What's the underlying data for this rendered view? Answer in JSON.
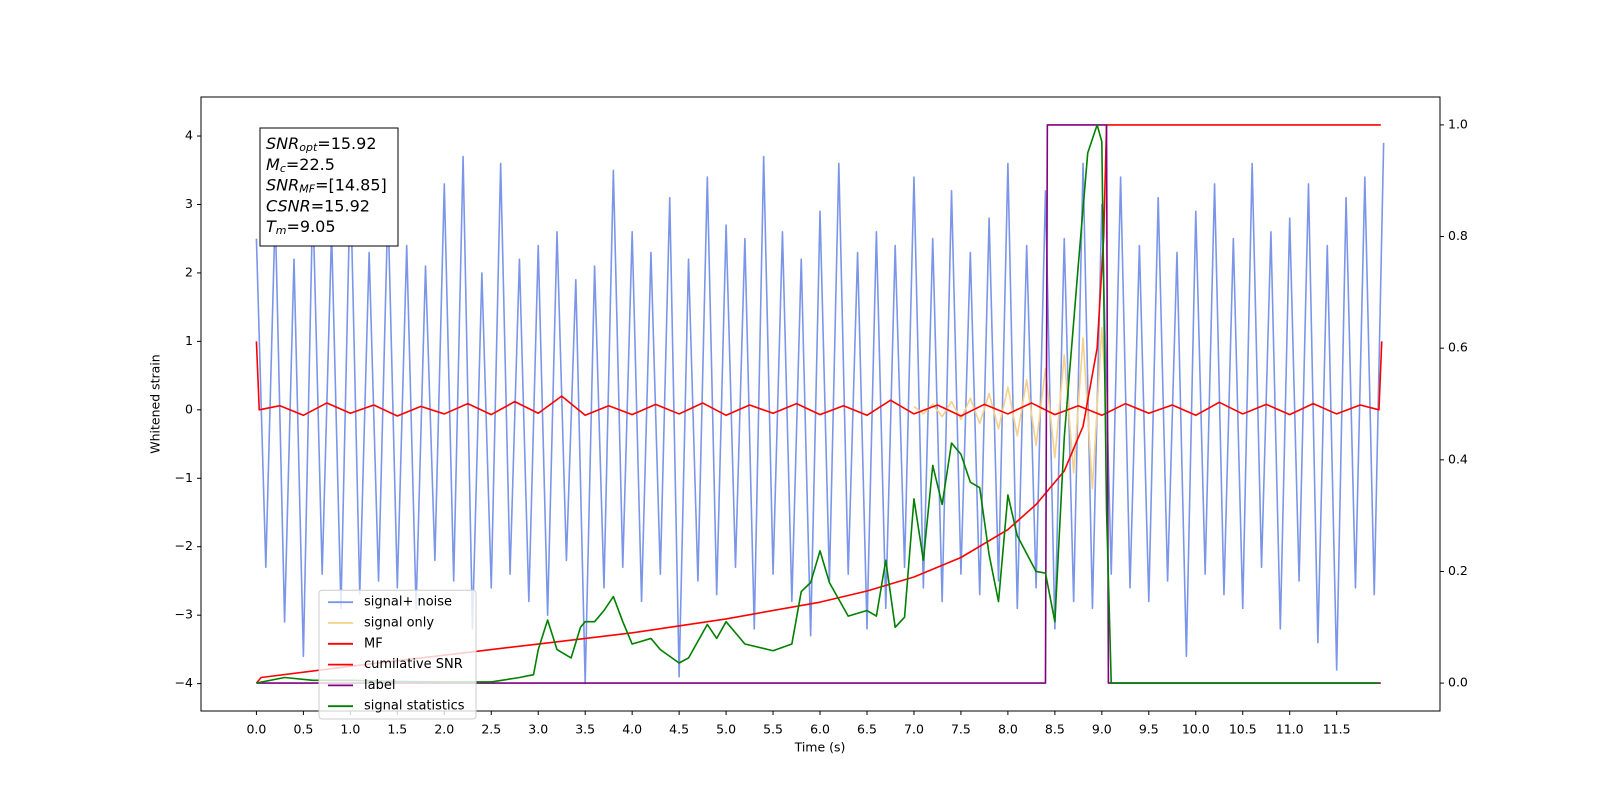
{
  "chart_data": {
    "type": "line",
    "x_label": "Time (s)",
    "y_label": "Whitened strain",
    "xlim": [
      -0.59,
      12.6
    ],
    "ylim": [
      -4.4,
      4.57
    ],
    "y2lim": [
      -0.05,
      1.05
    ],
    "xticks": [
      {
        "value": 0,
        "label": "0.0"
      },
      0.5,
      {
        "value": 1,
        "label": "1.0"
      },
      1.5,
      {
        "value": 2,
        "label": "2.0"
      },
      2.5,
      {
        "value": 3,
        "label": "3.0"
      },
      3.5,
      {
        "value": 4,
        "label": "4.0"
      },
      4.5,
      {
        "value": 5,
        "label": "5.0"
      },
      5.5,
      {
        "value": 6,
        "label": "6.0"
      },
      6.5,
      {
        "value": 7,
        "label": "7.0"
      },
      7.5,
      {
        "value": 8,
        "label": "8.0"
      },
      8.5,
      {
        "value": 9,
        "label": "9.0"
      },
      9.5,
      {
        "value": 10,
        "label": "10.0"
      },
      10.5,
      {
        "value": 11,
        "label": "11.0"
      },
      11.5
    ],
    "yticks": [
      {
        "value": -4,
        "label": "−4"
      },
      {
        "value": -3,
        "label": "−3"
      },
      {
        "value": -2,
        "label": "−2"
      },
      {
        "value": -1,
        "label": "−1"
      },
      0,
      1,
      2,
      3,
      4
    ],
    "y2ticks": [
      {
        "value": 0,
        "label": "0.0"
      },
      0.2,
      0.4,
      0.6,
      0.8,
      {
        "value": 1,
        "label": "1.0"
      }
    ],
    "grid": false,
    "legend": "lower left",
    "annotations": [
      {
        "main": "SNR",
        "sub": "opt",
        "text": "=15.92"
      },
      {
        "main": "M",
        "sub": "c",
        "text": "=22.5"
      },
      {
        "main": "SNR",
        "sub": "MF",
        "text": "=[14.85]"
      },
      {
        "main": "CSNR",
        "sub": "",
        "text": "=15.92"
      },
      {
        "main": "T",
        "sub": "m",
        "text": "=9.05"
      }
    ],
    "series": [
      {
        "name": "signal+ noise",
        "color": "#7b96e8",
        "x": [
          0,
          0.1,
          0.2,
          0.3,
          0.4,
          0.5,
          0.6,
          0.7,
          0.8,
          0.9,
          1.0,
          1.1,
          1.2,
          1.3,
          1.4,
          1.5,
          1.6,
          1.7,
          1.8,
          1.9,
          2.0,
          2.1,
          2.2,
          2.3,
          2.4,
          2.5,
          2.6,
          2.7,
          2.8,
          2.9,
          3.0,
          3.1,
          3.2,
          3.3,
          3.4,
          3.5,
          3.6,
          3.7,
          3.8,
          3.9,
          4.0,
          4.1,
          4.2,
          4.3,
          4.4,
          4.5,
          4.6,
          4.7,
          4.8,
          4.9,
          5.0,
          5.1,
          5.2,
          5.3,
          5.4,
          5.5,
          5.6,
          5.7,
          5.8,
          5.9,
          6.0,
          6.1,
          6.2,
          6.3,
          6.4,
          6.5,
          6.6,
          6.7,
          6.8,
          6.9,
          7.0,
          7.1,
          7.2,
          7.3,
          7.4,
          7.5,
          7.6,
          7.7,
          7.8,
          7.9,
          8.0,
          8.1,
          8.2,
          8.3,
          8.4,
          8.5,
          8.6,
          8.7,
          8.8,
          8.9,
          9.0,
          9.1,
          9.2,
          9.3,
          9.4,
          9.5,
          9.6,
          9.7,
          9.8,
          9.9,
          10.0,
          10.1,
          10.2,
          10.3,
          10.4,
          10.5,
          10.6,
          10.7,
          10.8,
          10.9,
          11.0,
          11.1,
          11.2,
          11.3,
          11.4,
          11.5,
          11.6,
          11.7,
          11.8,
          11.9,
          12.0
        ],
        "values": [
          2.5,
          -2.3,
          2.9,
          -3.1,
          2.2,
          -3.6,
          3.1,
          -2.4,
          2.6,
          -2.9,
          3.4,
          -2.7,
          2.3,
          -2.5,
          3.0,
          -2.6,
          2.4,
          -2.9,
          2.1,
          -2.2,
          3.3,
          -2.5,
          3.7,
          -3.2,
          2.0,
          -2.6,
          3.6,
          -2.4,
          2.2,
          -2.8,
          2.4,
          -3.0,
          2.6,
          -2.2,
          1.9,
          -4.0,
          2.1,
          -2.6,
          3.5,
          -2.3,
          2.6,
          -2.8,
          2.3,
          -2.4,
          3.1,
          -3.9,
          2.2,
          -2.5,
          3.4,
          -2.7,
          2.7,
          -2.3,
          2.5,
          -3.2,
          3.7,
          -2.4,
          2.6,
          -2.8,
          2.2,
          -3.3,
          2.9,
          -2.5,
          3.6,
          -2.4,
          2.3,
          -3.2,
          2.6,
          -2.9,
          2.4,
          -2.3,
          3.4,
          -2.6,
          2.5,
          -2.8,
          3.2,
          -2.4,
          2.3,
          -2.7,
          2.8,
          -2.5,
          3.6,
          -2.9,
          2.4,
          -2.6,
          3.2,
          -3.2,
          2.5,
          -2.8,
          3.6,
          -2.9,
          3.0,
          -2.4,
          3.4,
          -2.6,
          2.4,
          -2.8,
          3.1,
          -2.5,
          2.3,
          -3.6,
          2.9,
          -2.4,
          3.3,
          -2.7,
          2.5,
          -2.9,
          3.6,
          -2.3,
          2.6,
          -3.2,
          2.8,
          -2.5,
          3.3,
          -3.4,
          2.4,
          -3.8,
          3.1,
          -2.6,
          3.4,
          -2.7,
          3.9
        ]
      },
      {
        "name": "signal only",
        "color": "#f7d08a",
        "x": [
          7.0,
          7.1,
          7.2,
          7.3,
          7.4,
          7.5,
          7.6,
          7.7,
          7.8,
          7.9,
          8.0,
          8.1,
          8.2,
          8.3,
          8.4,
          8.5,
          8.6,
          8.7,
          8.8,
          8.9,
          9.0,
          9.05
        ],
        "values": [
          0.05,
          -0.06,
          0.08,
          -0.1,
          0.12,
          -0.14,
          0.17,
          -0.2,
          0.24,
          -0.28,
          0.33,
          -0.38,
          0.44,
          -0.52,
          0.6,
          -0.7,
          0.8,
          -0.92,
          1.05,
          -1.15,
          1.2,
          0
        ]
      },
      {
        "name": "MF",
        "color": "#ff0000",
        "x": [
          0,
          0.03,
          0.25,
          0.5,
          0.75,
          1,
          1.25,
          1.5,
          1.75,
          2,
          2.25,
          2.5,
          2.75,
          3,
          3.25,
          3.5,
          3.75,
          4,
          4.25,
          4.5,
          4.75,
          5,
          5.25,
          5.5,
          5.75,
          6,
          6.25,
          6.5,
          6.75,
          7,
          7.25,
          7.5,
          7.75,
          8,
          8.25,
          8.5,
          8.75,
          9,
          9.25,
          9.5,
          9.75,
          10,
          10.25,
          10.5,
          10.75,
          11,
          11.25,
          11.5,
          11.75,
          11.95,
          11.98
        ],
        "values": [
          1.0,
          0.0,
          0.06,
          -0.08,
          0.1,
          -0.05,
          0.07,
          -0.09,
          0.05,
          -0.06,
          0.09,
          -0.07,
          0.12,
          -0.05,
          0.2,
          -0.08,
          0.06,
          -0.07,
          0.08,
          -0.06,
          0.1,
          -0.08,
          0.07,
          -0.05,
          0.09,
          -0.07,
          0.06,
          -0.08,
          0.14,
          -0.06,
          0.07,
          -0.09,
          0.08,
          -0.06,
          0.1,
          -0.07,
          0.06,
          -0.08,
          0.09,
          -0.05,
          0.07,
          -0.08,
          0.11,
          -0.06,
          0.08,
          -0.07,
          0.09,
          -0.06,
          0.07,
          0.0,
          1.0
        ]
      },
      {
        "name": "cumilative SNR",
        "color": "#ff0000",
        "axis": "y2",
        "x": [
          0,
          0.05,
          1,
          2,
          3,
          4,
          5,
          6,
          6.5,
          7,
          7.5,
          8,
          8.3,
          8.6,
          8.8,
          8.95,
          9.02,
          9.05,
          11.97
        ],
        "values": [
          0,
          0.01,
          0.03,
          0.05,
          0.07,
          0.09,
          0.115,
          0.145,
          0.165,
          0.19,
          0.225,
          0.275,
          0.32,
          0.38,
          0.46,
          0.6,
          0.8,
          1.0,
          1.0
        ]
      },
      {
        "name": "label",
        "color": "#800080",
        "axis": "y2",
        "x": [
          0,
          8.4,
          8.42,
          9.05,
          9.07,
          11.97
        ],
        "values": [
          0,
          0,
          1,
          1,
          0,
          0
        ]
      },
      {
        "name": "signal statistics",
        "color": "#008000",
        "axis": "y2",
        "x": [
          0,
          0.3,
          0.6,
          1.0,
          1.5,
          2.0,
          2.5,
          2.8,
          2.95,
          3.0,
          3.1,
          3.2,
          3.35,
          3.45,
          3.5,
          3.6,
          3.7,
          3.8,
          3.9,
          4.0,
          4.1,
          4.2,
          4.3,
          4.5,
          4.6,
          4.8,
          4.9,
          5.0,
          5.2,
          5.5,
          5.7,
          5.8,
          5.9,
          6.0,
          6.1,
          6.3,
          6.5,
          6.6,
          6.7,
          6.8,
          6.9,
          7.0,
          7.1,
          7.2,
          7.3,
          7.4,
          7.5,
          7.6,
          7.7,
          7.8,
          7.9,
          8.0,
          8.1,
          8.3,
          8.4,
          8.5,
          8.6,
          8.75,
          8.85,
          8.95,
          9.0,
          9.05,
          9.1,
          11.95
        ],
        "values": [
          0,
          0.01,
          0.005,
          0.005,
          0.003,
          0.002,
          0.002,
          0.01,
          0.015,
          0.06,
          0.113,
          0.06,
          0.045,
          0.1,
          0.11,
          0.11,
          0.13,
          0.155,
          0.11,
          0.07,
          0.075,
          0.08,
          0.06,
          0.036,
          0.045,
          0.105,
          0.08,
          0.11,
          0.07,
          0.058,
          0.07,
          0.164,
          0.18,
          0.237,
          0.18,
          0.12,
          0.13,
          0.12,
          0.22,
          0.1,
          0.118,
          0.33,
          0.22,
          0.39,
          0.32,
          0.43,
          0.41,
          0.36,
          0.35,
          0.23,
          0.146,
          0.337,
          0.264,
          0.2,
          0.197,
          0.11,
          0.44,
          0.75,
          0.95,
          1.0,
          0.97,
          0.31,
          0,
          0
        ]
      }
    ]
  }
}
